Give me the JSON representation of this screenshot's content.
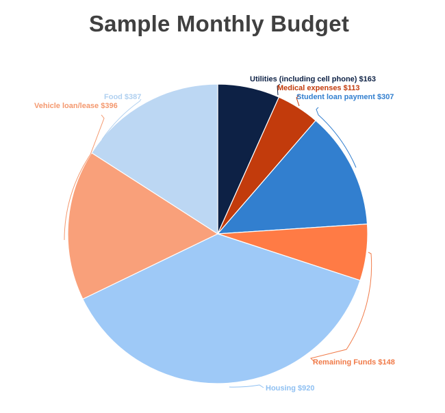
{
  "chart_data": {
    "type": "pie",
    "title": "Sample Monthly Budget",
    "currency": "$",
    "start_angle_deg": 0,
    "direction": "clockwise",
    "slices": [
      {
        "name": "Utilities (including cell phone)",
        "value": 163,
        "label": "Utilities (including cell phone) $163",
        "color": "#0d2145",
        "label_color": "#0d2145"
      },
      {
        "name": "Medical expenses",
        "value": 113,
        "label": "Medical expenses $113",
        "color": "#c23b0c",
        "label_color": "#c23b0c"
      },
      {
        "name": "Student loan payment",
        "value": 307,
        "label": "Student loan payment $307",
        "color": "#327fcf",
        "label_color": "#327fcf"
      },
      {
        "name": "Remaining Funds",
        "value": 148,
        "label": "Remaining Funds $148",
        "color": "#ff7b45",
        "label_color": "#f07a48"
      },
      {
        "name": "Housing",
        "value": 920,
        "label": "Housing $920",
        "color": "#9ec9f7",
        "label_color": "#8fc0f2"
      },
      {
        "name": "Vehicle loan/lease",
        "value": 396,
        "label": "Vehicle loan/lease $396",
        "color": "#f9a07a",
        "label_color": "#f4986e"
      },
      {
        "name": "Food",
        "value": 387,
        "label": "Food $387",
        "color": "#bcd7f3",
        "label_color": "#b0d0f0"
      }
    ]
  }
}
